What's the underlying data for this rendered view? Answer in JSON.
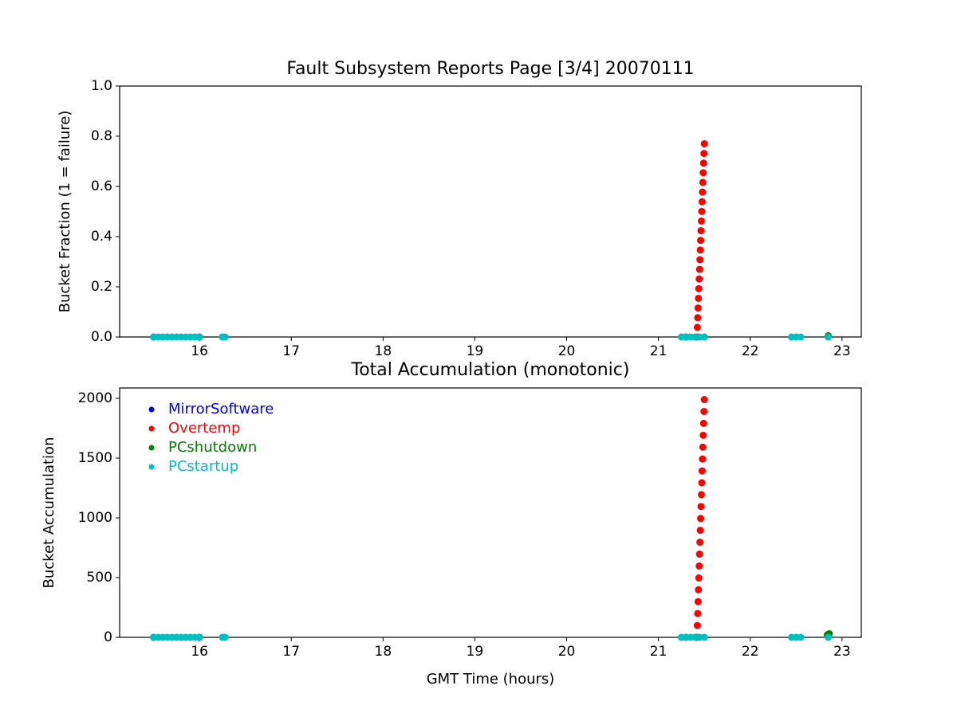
{
  "chart_data": [
    {
      "type": "scatter",
      "title": "Fault Subsystem Reports Page [3/4] 20070111",
      "y_label": "Bucket Fraction (1 = failure)",
      "xlim": [
        15.13,
        23.21
      ],
      "xticks": [
        16,
        17,
        18,
        19,
        20,
        21,
        22,
        23
      ],
      "ylim": [
        0,
        1
      ],
      "yticks": [
        {
          "value": 0,
          "label": "0.0"
        },
        0.2,
        0.4,
        0.6,
        0.8,
        {
          "value": 1,
          "label": "1.0"
        }
      ],
      "series": [
        {
          "name": "MirrorSoftware",
          "color": "#0000ff",
          "x": [
            15.5,
            16.0,
            21.3
          ],
          "values": [
            0,
            0,
            0
          ]
        },
        {
          "name": "Overtemp",
          "color": "#ff0000",
          "x": [
            21.42,
            21.424,
            21.428,
            21.432,
            21.436,
            21.44,
            21.444,
            21.448,
            21.452,
            21.456,
            21.46,
            21.464,
            21.468,
            21.472,
            21.476,
            21.48,
            21.484,
            21.488,
            21.492,
            21.496,
            21.5
          ],
          "values": [
            0,
            0.0385,
            0.077,
            0.1155,
            0.154,
            0.1925,
            0.231,
            0.2695,
            0.308,
            0.3465,
            0.385,
            0.4235,
            0.462,
            0.5005,
            0.539,
            0.5775,
            0.616,
            0.6545,
            0.693,
            0.7315,
            0.77
          ]
        },
        {
          "name": "PCshutdown",
          "color": "#008000",
          "x": [
            22.85
          ],
          "values": [
            0.005
          ]
        },
        {
          "name": "PCstartup",
          "color": "#00bfbf",
          "x": [
            15.5,
            15.55,
            15.6,
            15.65,
            15.7,
            15.75,
            15.8,
            15.85,
            15.9,
            15.95,
            16.0,
            16.25,
            16.28,
            21.25,
            21.3,
            21.35,
            21.4,
            21.45,
            21.5,
            22.45,
            22.5,
            22.55,
            22.85
          ],
          "values": [
            0,
            0,
            0,
            0,
            0,
            0,
            0,
            0,
            0,
            0,
            0,
            0,
            0,
            0,
            0,
            0,
            0,
            0,
            0,
            0,
            0,
            0,
            0
          ]
        }
      ]
    },
    {
      "type": "scatter",
      "title": "Total Accumulation (monotonic)",
      "x_label": "GMT Time (hours)",
      "y_label": "Bucket Accumulation",
      "xlim": [
        15.13,
        23.21
      ],
      "xticks": [
        16,
        17,
        18,
        19,
        20,
        21,
        22,
        23
      ],
      "ylim": [
        0,
        2087
      ],
      "yticks": [
        0,
        500,
        1000,
        1500,
        2000
      ],
      "legend": "upper left",
      "series": [
        {
          "name": "MirrorSoftware",
          "color": "#0000ff",
          "x": [
            15.5,
            16.0,
            21.3
          ],
          "values": [
            0,
            0,
            0
          ]
        },
        {
          "name": "Overtemp",
          "color": "#ff0000",
          "x": [
            21.42,
            21.424,
            21.428,
            21.432,
            21.436,
            21.44,
            21.444,
            21.448,
            21.452,
            21.456,
            21.46,
            21.464,
            21.468,
            21.472,
            21.476,
            21.48,
            21.484,
            21.488,
            21.492,
            21.496,
            21.5
          ],
          "values": [
            0,
            99.5,
            199,
            298.5,
            398,
            497.5,
            597,
            696.5,
            796,
            895.5,
            995,
            1094.5,
            1194,
            1293.5,
            1393,
            1492.5,
            1592,
            1691.5,
            1791,
            1890.5,
            1990
          ]
        },
        {
          "name": "PCshutdown",
          "color": "#008000",
          "x": [
            22.84,
            22.85,
            22.86
          ],
          "values": [
            20,
            25,
            30
          ]
        },
        {
          "name": "PCstartup",
          "color": "#00bfbf",
          "x": [
            15.5,
            15.55,
            15.6,
            15.65,
            15.7,
            15.75,
            15.8,
            15.85,
            15.9,
            15.95,
            16.0,
            16.25,
            16.28,
            21.25,
            21.3,
            21.35,
            21.4,
            21.45,
            21.5,
            22.45,
            22.5,
            22.55,
            22.85
          ],
          "values": [
            0,
            0,
            0,
            0,
            0,
            0,
            0,
            0,
            0,
            0,
            0,
            0,
            0,
            0,
            0,
            0,
            0,
            0,
            0,
            0,
            0,
            0,
            0
          ]
        }
      ]
    }
  ]
}
